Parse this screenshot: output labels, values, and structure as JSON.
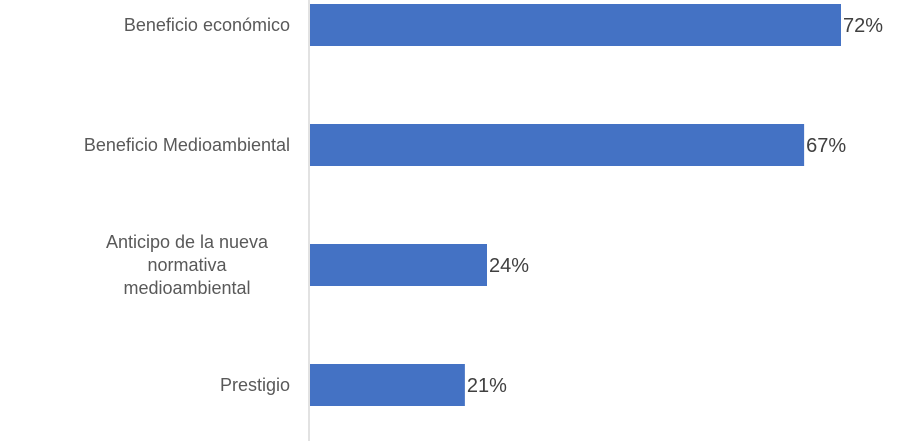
{
  "chart_data": {
    "type": "bar",
    "orientation": "horizontal",
    "categories": [
      [
        "Beneficio económico"
      ],
      [
        "Beneficio Medioambiental"
      ],
      [
        "Anticipo de la nueva",
        "normativa",
        "medioambiental"
      ],
      [
        "Prestigio"
      ]
    ],
    "values": [
      72,
      67,
      24,
      21
    ],
    "value_labels": [
      "72%",
      "67%",
      "24%",
      "21%"
    ],
    "xlim": [
      0,
      72
    ],
    "grid": false,
    "legend": "none",
    "colors": {
      "bar": "#4472C4",
      "axis": "#D9D9D9",
      "category_text": "#595959",
      "value_text": "#404040"
    }
  }
}
